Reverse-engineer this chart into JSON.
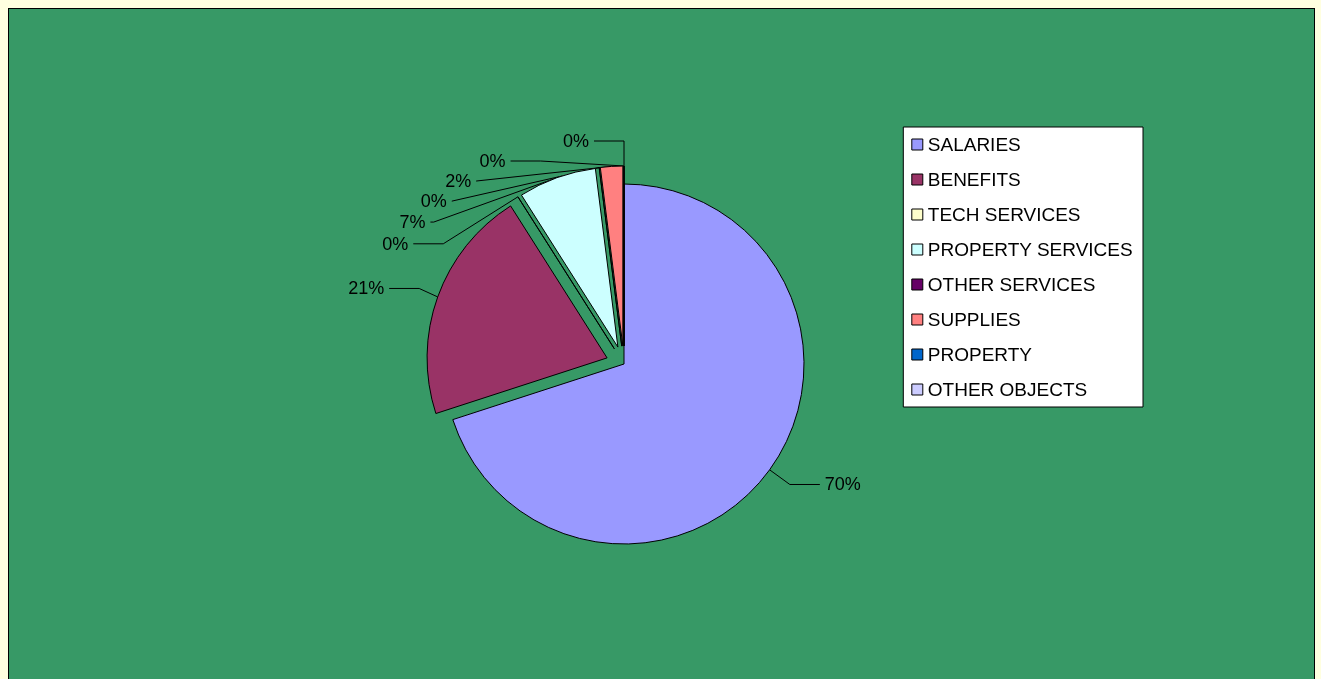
{
  "chart_data": {
    "type": "pie",
    "categories": [
      "SALARIES",
      "BENEFITS",
      "TECH SERVICES",
      "PROPERTY SERVICES",
      "OTHER SERVICES",
      "SUPPLIES",
      "PROPERTY",
      "OTHER OBJECTS"
    ],
    "values": [
      70,
      21,
      0,
      7,
      0,
      2,
      0,
      0
    ],
    "colors": [
      "#9999ff",
      "#993366",
      "#ffffcc",
      "#ccffff",
      "#660066",
      "#ff8080",
      "#0066cc",
      "#ccccff"
    ],
    "value_labels": [
      "70%",
      "21%",
      "0%",
      "7%",
      "0%",
      "2%",
      "0%",
      "0%"
    ],
    "legend": "right"
  }
}
